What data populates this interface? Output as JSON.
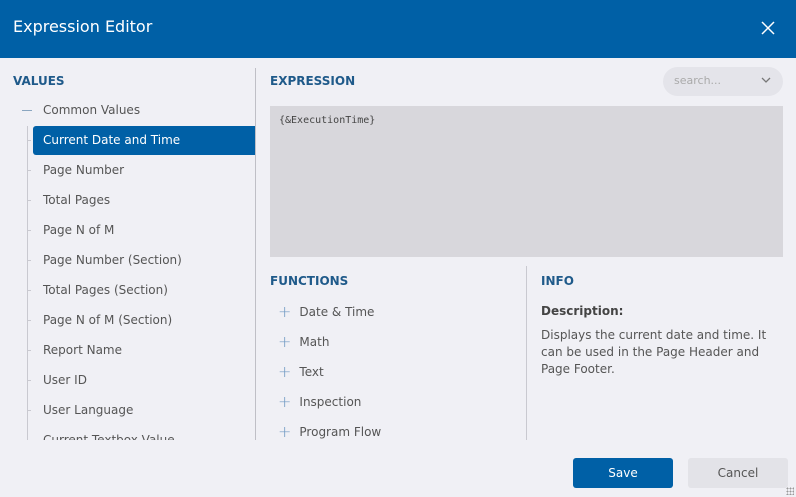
{
  "header": {
    "title": "Expression Editor",
    "close_icon": "close-icon"
  },
  "values": {
    "heading": "VALUES",
    "group": "Common Values",
    "items": [
      "Current Date and Time",
      "Page Number",
      "Total Pages",
      "Page N of M",
      "Page Number (Section)",
      "Total Pages (Section)",
      "Page N of M (Section)",
      "Report Name",
      "User ID",
      "User Language",
      "Current Textbox Value"
    ],
    "selected": "Current Date and Time"
  },
  "expression": {
    "heading": "EXPRESSION",
    "search_placeholder": "search...",
    "value": "{&ExecutionTime}"
  },
  "functions": {
    "heading": "FUNCTIONS",
    "items": [
      "Date & Time",
      "Math",
      "Text",
      "Inspection",
      "Program Flow"
    ]
  },
  "info": {
    "heading": "INFO",
    "description_label": "Description:",
    "description": "Displays the current date and time. It can be used in the Page Header and Page Footer."
  },
  "footer": {
    "save": "Save",
    "cancel": "Cancel"
  },
  "colors": {
    "accent": "#0060a6",
    "background": "#f0f0f5"
  }
}
